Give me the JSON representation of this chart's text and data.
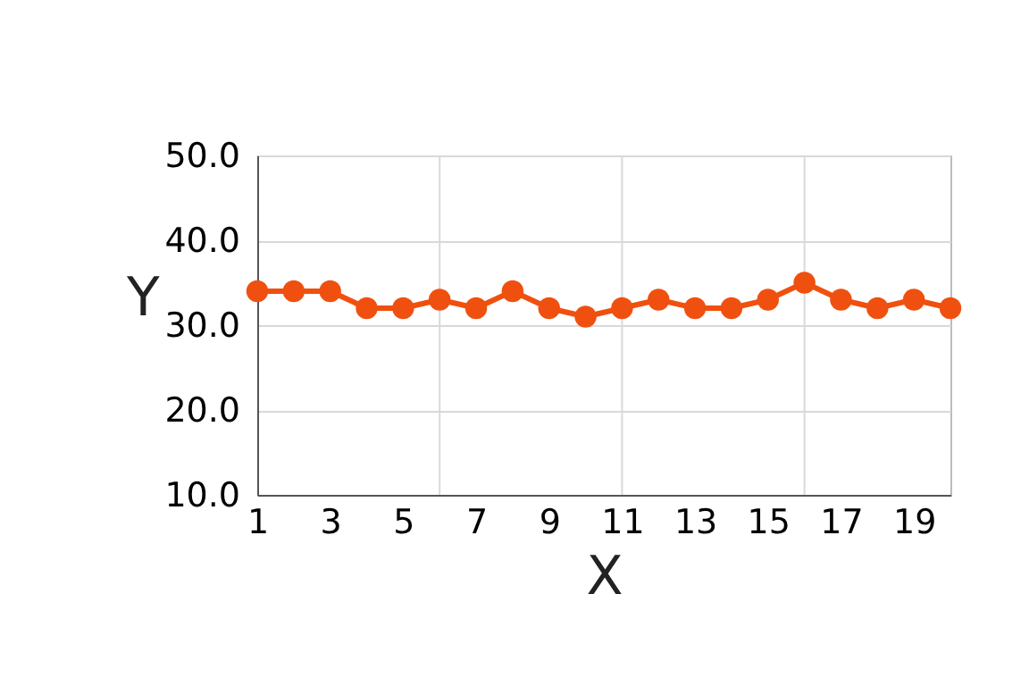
{
  "chart_data": {
    "type": "line",
    "xlabel": "X",
    "ylabel": "Y",
    "x": [
      1,
      2,
      3,
      4,
      5,
      6,
      7,
      8,
      9,
      10,
      11,
      12,
      13,
      14,
      15,
      16,
      17,
      18,
      19,
      20
    ],
    "series": [
      {
        "color": "#f0500f",
        "values": [
          34,
          34,
          34,
          32,
          32,
          33,
          32,
          34,
          32,
          31,
          32,
          33,
          32,
          32,
          33,
          35,
          33,
          32,
          33,
          32
        ]
      }
    ],
    "xlim": [
      1,
      20
    ],
    "xticks": [
      1,
      3,
      5,
      {
        "value": 6,
        "label": null
      },
      7,
      9,
      {
        "value": 11,
        "label": "11"
      },
      13,
      15,
      {
        "value": 16,
        "label": null
      },
      17,
      19
    ],
    "ylim": [
      10,
      50
    ],
    "yticks": [
      {
        "value": 10,
        "label": "10.0"
      },
      {
        "value": 20,
        "label": "20.0"
      },
      {
        "value": 30,
        "label": "30.0"
      },
      {
        "value": 40,
        "label": "40.0"
      },
      {
        "value": 50,
        "label": "50.0"
      }
    ],
    "grid": true,
    "marker": "circle",
    "line_style": "solid"
  }
}
